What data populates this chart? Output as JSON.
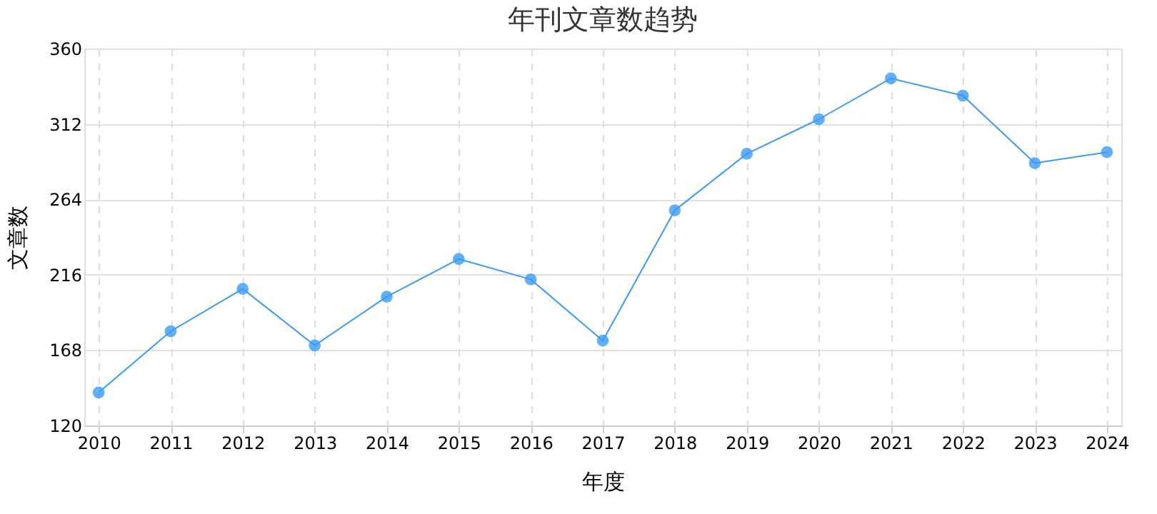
{
  "chart_data": {
    "type": "line",
    "title": "年刊文章数趋势",
    "xlabel": "年度",
    "ylabel": "文章数",
    "categories": [
      "2010",
      "2011",
      "2012",
      "2013",
      "2014",
      "2015",
      "2016",
      "2017",
      "2018",
      "2019",
      "2020",
      "2021",
      "2022",
      "2023",
      "2024"
    ],
    "series": [
      {
        "color": "#3a9bf5",
        "values": [
          141,
          180,
          207,
          171,
          202,
          226,
          213,
          174,
          257,
          293,
          315,
          341,
          330,
          287,
          294
        ]
      }
    ],
    "ylim": [
      120,
      360
    ],
    "yticks": [
      120,
      168,
      216,
      264,
      312,
      360
    ],
    "grid": true,
    "marker": "circle",
    "line_style": "solid"
  }
}
